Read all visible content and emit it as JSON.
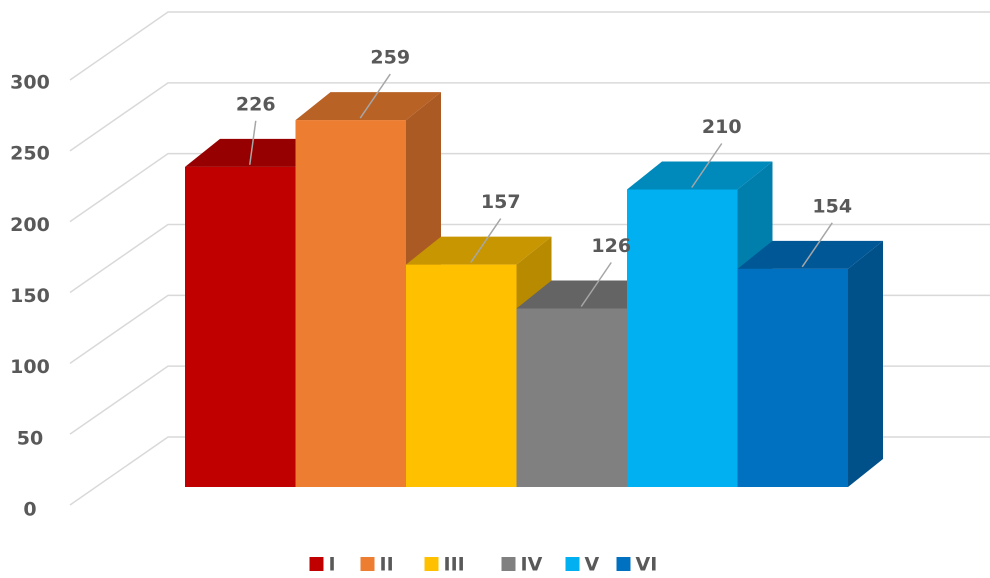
{
  "chart_data": {
    "type": "bar3d",
    "categories": [
      "I",
      "II",
      "III",
      "IV",
      "V",
      "VI"
    ],
    "values": [
      226,
      259,
      157,
      126,
      210,
      154
    ],
    "colors": [
      "#c00000",
      "#ed7d31",
      "#ffc000",
      "#808080",
      "#00b0f0",
      "#0070c0"
    ],
    "ylim": [
      0,
      300
    ],
    "yticks": [
      0,
      50,
      100,
      150,
      200,
      250,
      300
    ],
    "grid": true,
    "legend": "bottom"
  }
}
